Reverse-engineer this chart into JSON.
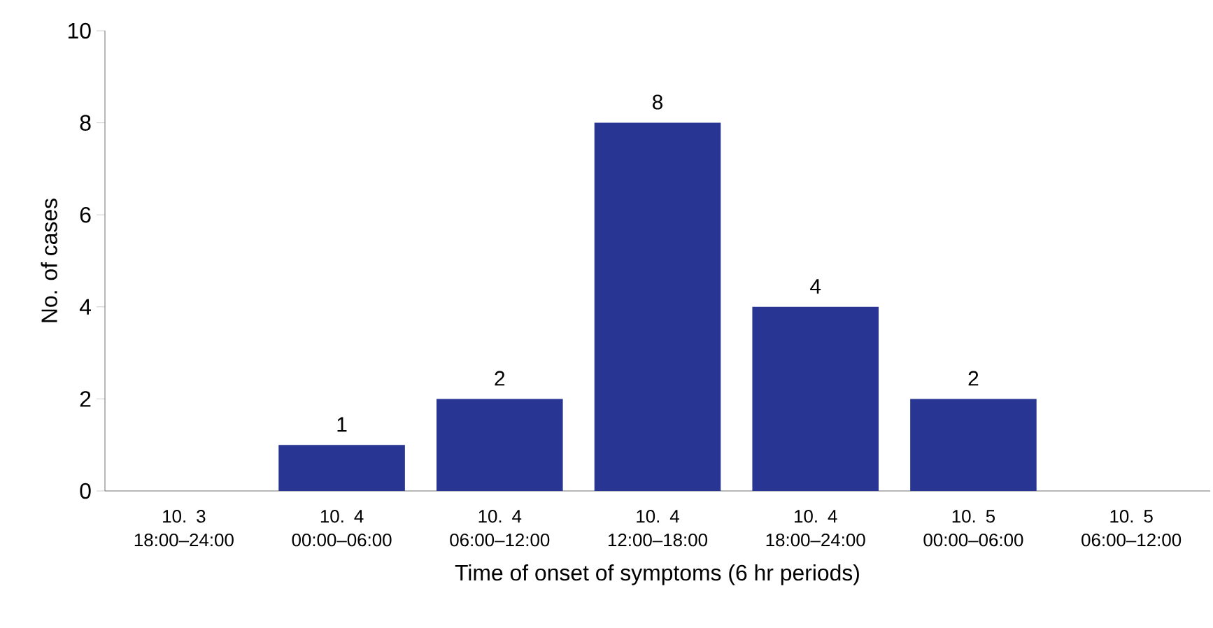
{
  "chart_data": {
    "type": "bar",
    "xlabel": "Time of onset of symptoms (6 hr periods)",
    "ylabel": "No. of cases",
    "categories": [
      "10. 3 18:00–24:00",
      "10. 4 00:00–06:00",
      "10. 4 06:00–12:00",
      "10. 4 12:00–18:00",
      "10. 4 18:00–24:00",
      "10. 5 00:00–06:00",
      "10. 5 06:00–12:00"
    ],
    "values": [
      0,
      1,
      2,
      8,
      4,
      2,
      0
    ],
    "color": "#283593",
    "value_labels": [
      null,
      "1",
      "2",
      "8",
      "4",
      "2",
      null
    ],
    "ylim": [
      0,
      10
    ],
    "yticks": [
      0,
      2,
      4,
      6,
      8,
      10
    ],
    "grid": false
  }
}
